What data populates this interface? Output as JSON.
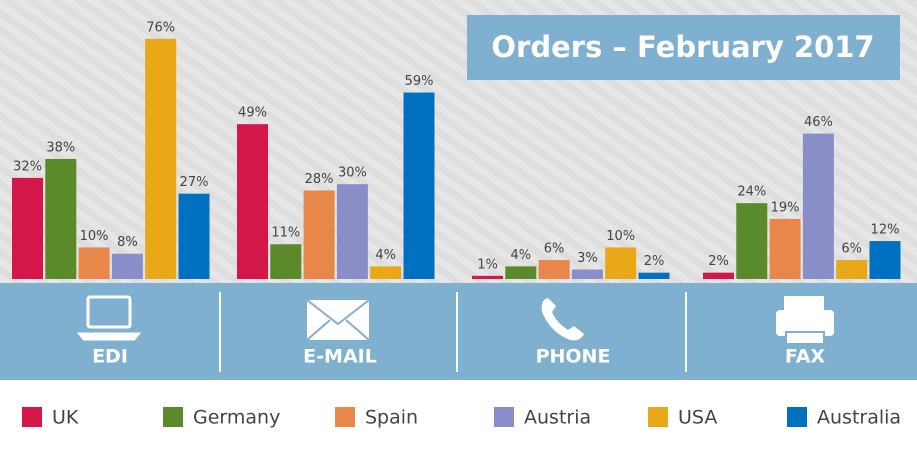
{
  "chart_data": {
    "type": "bar",
    "title": "Orders – February 2017",
    "categories": [
      "EDI",
      "E-MAIL",
      "PHONE",
      "FAX"
    ],
    "series": [
      {
        "name": "UK",
        "color": "#d4174a",
        "values": [
          32,
          49,
          1,
          2
        ],
        "value_labels": [
          "32%",
          "49%",
          "1%",
          "2%"
        ]
      },
      {
        "name": "Germany",
        "color": "#5a8a2a",
        "values": [
          38,
          11,
          4,
          24
        ],
        "value_labels": [
          "38%",
          "11%",
          "4%",
          "24%"
        ]
      },
      {
        "name": "Spain",
        "color": "#e8874a",
        "values": [
          10,
          28,
          6,
          19
        ],
        "value_labels": [
          "10%",
          "28%",
          "6%",
          "19%"
        ]
      },
      {
        "name": "Austria",
        "color": "#8a8ec8",
        "values": [
          8,
          30,
          3,
          46
        ],
        "value_labels": [
          "8%",
          "30%",
          "3%",
          "46%"
        ]
      },
      {
        "name": "USA",
        "color": "#e8a818",
        "values": [
          76,
          4,
          10,
          6
        ],
        "value_labels": [
          "76%",
          "4%",
          "10%",
          "6%"
        ]
      },
      {
        "name": "Australia",
        "color": "#0070c0",
        "values": [
          27,
          59,
          2,
          12
        ],
        "value_labels": [
          "27%",
          "59%",
          "2%",
          "12%"
        ]
      }
    ]
  }
}
